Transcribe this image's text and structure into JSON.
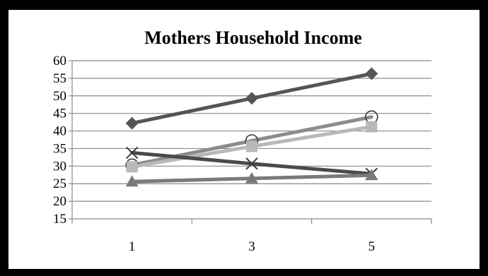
{
  "chart_data": {
    "type": "line",
    "title": "Mothers Household Income",
    "xlabel": "",
    "ylabel": "",
    "x": [
      1,
      3,
      5
    ],
    "x_tick_labels": [
      "1",
      "3",
      "5"
    ],
    "ylim": [
      15,
      60
    ],
    "y_ticks": [
      15,
      20,
      25,
      30,
      35,
      40,
      45,
      50,
      55,
      60
    ],
    "grid": true,
    "legend": "none",
    "series": [
      {
        "values": [
          42.2,
          49.3,
          56.3
        ],
        "marker": "diamond",
        "color": "#555555"
      },
      {
        "values": [
          30.3,
          37.2,
          44.0
        ],
        "marker": "circle",
        "color": "#8c8c8c"
      },
      {
        "values": [
          29.8,
          35.6,
          41.2
        ],
        "marker": "square",
        "color": "#b8b8b8"
      },
      {
        "values": [
          33.8,
          30.7,
          27.8
        ],
        "marker": "x",
        "color": "#4a4a4a"
      },
      {
        "values": [
          25.6,
          26.5,
          27.4
        ],
        "marker": "triangle",
        "color": "#7a7a7a"
      }
    ]
  }
}
